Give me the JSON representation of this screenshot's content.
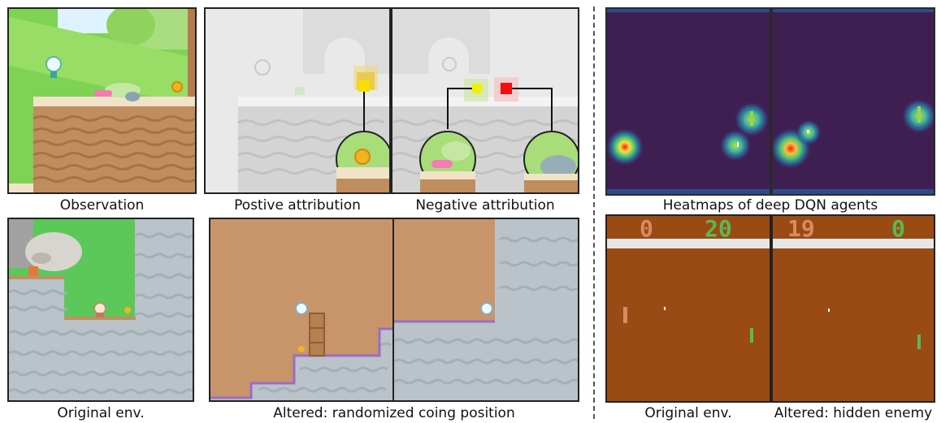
{
  "captions": {
    "observation": "Observation",
    "positive": "Postive attribution",
    "negative": "Negative attribution",
    "original_env_left": "Original env.",
    "altered_coin": "Altered: randomized coing position",
    "heatmaps": "Heatmaps of deep DQN agents",
    "original_env_right": "Original env.",
    "altered_enemy": "Altered: hidden enemy"
  },
  "pong_scores": {
    "original": {
      "left": "0",
      "right": "20"
    },
    "altered": {
      "left": "19",
      "right": "0"
    }
  },
  "colors": {
    "grass": "#7fce4d",
    "dirt": "#c8956a",
    "water": "#b9c3c9",
    "heatmap_bg": "#3f1f51",
    "pong_bg": "#9a4b14",
    "pong_bar": "#e6e6e6",
    "paddle_left": "#d88c5e",
    "paddle_right": "#59b954",
    "score_left": "#d88c5e",
    "score_right": "#59b954"
  }
}
